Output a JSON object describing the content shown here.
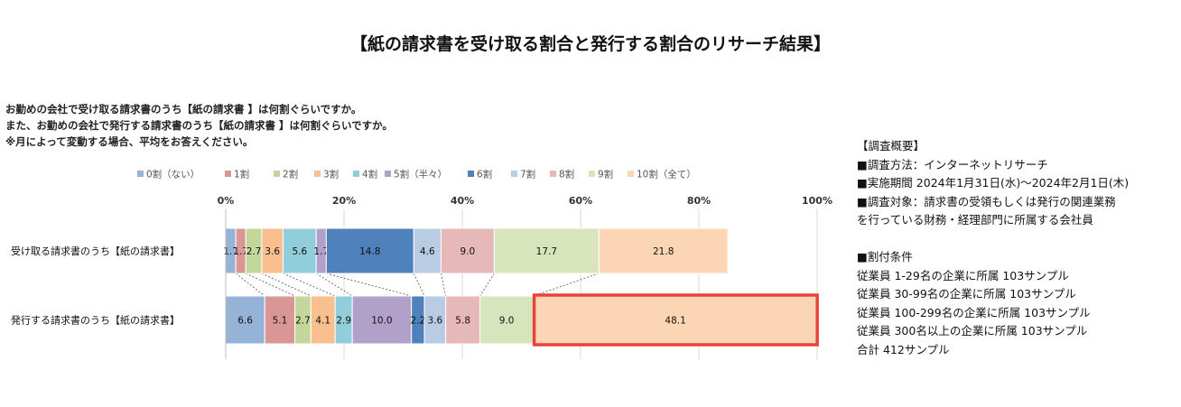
{
  "title": "【紙の請求書を受け取る割合と発行する割合のリサーチ結果】",
  "question": [
    "お勤めの会社で受け取る請求書のうち【紙の請求書 】は何割ぐらいですか。",
    "また、お勤めの会社で発行する請求書のうち【紙の請求書 】は何割ぐらいですか。",
    "※月によって変動する場合、平均をお答えください。"
  ],
  "summary": [
    "【調査概要】",
    "■調査方法：インターネットリサーチ",
    "■実施期間 2024年1月31日(水)～2024年2月1日(木)",
    "■調査対象：請求書の受領もしくは発行の関連業務",
    "を行っている財務・経理部門に所属する会社員",
    "",
    "■割付条件",
    "従業員 1-29名の企業に所属 103サンプル",
    "従業員 30-99名の企業に所属 103サンプル",
    "従業員 100-299名の企業に所属 103サンプル",
    "従業員 300名以上の企業に所属 103サンプル",
    "合計 412サンプル"
  ],
  "chart_data": {
    "type": "bar",
    "orientation": "horizontal",
    "stacked": "100%",
    "categories": [
      "受け取る請求書のうち【紙の請求書】",
      "発行する請求書のうち【紙の請求書】"
    ],
    "x_tick_labels": [
      "0%",
      "20%",
      "40%",
      "60%",
      "80%",
      "100%"
    ],
    "xlim": [
      0,
      100
    ],
    "legend_position": "top",
    "series": [
      {
        "name": "0割（ない）",
        "color": "#95b3d7",
        "values": [
          1.7,
          6.6
        ],
        "labels": [
          "1.7",
          "6.6"
        ]
      },
      {
        "name": "1割",
        "color": "#da9694",
        "values": [
          1.7,
          5.1
        ],
        "labels": [
          "1.7",
          "5.1"
        ]
      },
      {
        "name": "2割",
        "color": "#c4d79b",
        "values": [
          2.7,
          2.7
        ],
        "labels": [
          "2.7",
          "2.7"
        ]
      },
      {
        "name": "3割",
        "color": "#fabf8f",
        "values": [
          3.6,
          4.1
        ],
        "labels": [
          "3.6",
          "4.1"
        ]
      },
      {
        "name": "4割",
        "color": "#92cddc",
        "values": [
          5.6,
          2.9
        ],
        "labels": [
          "5.6",
          "2.9"
        ]
      },
      {
        "name": "5割（半々）",
        "color": "#b1a0c7",
        "values": [
          1.7,
          10.0
        ],
        "labels": [
          "1.7",
          "10.0"
        ]
      },
      {
        "name": "6割",
        "color": "#4f81bd",
        "values": [
          14.8,
          2.2
        ],
        "labels": [
          "14.8",
          "2.2"
        ]
      },
      {
        "name": "7割",
        "color": "#b8cce4",
        "values": [
          4.6,
          3.6
        ],
        "labels": [
          "4.6",
          "3.6"
        ]
      },
      {
        "name": "8割",
        "color": "#e6b8b7",
        "values": [
          9.0,
          5.8
        ],
        "labels": [
          "9.0",
          "5.8"
        ]
      },
      {
        "name": "9割",
        "color": "#d8e4bc",
        "values": [
          17.7,
          9.0
        ],
        "labels": [
          "17.7",
          "9.0"
        ]
      },
      {
        "name": "10割（全て）",
        "color": "#fcd5b4",
        "values": [
          21.8,
          48.1
        ],
        "labels": [
          "21.8",
          "48.1"
        ]
      }
    ],
    "highlight": {
      "category_index": 1,
      "series_index": 10,
      "color": "#e8443a"
    }
  }
}
